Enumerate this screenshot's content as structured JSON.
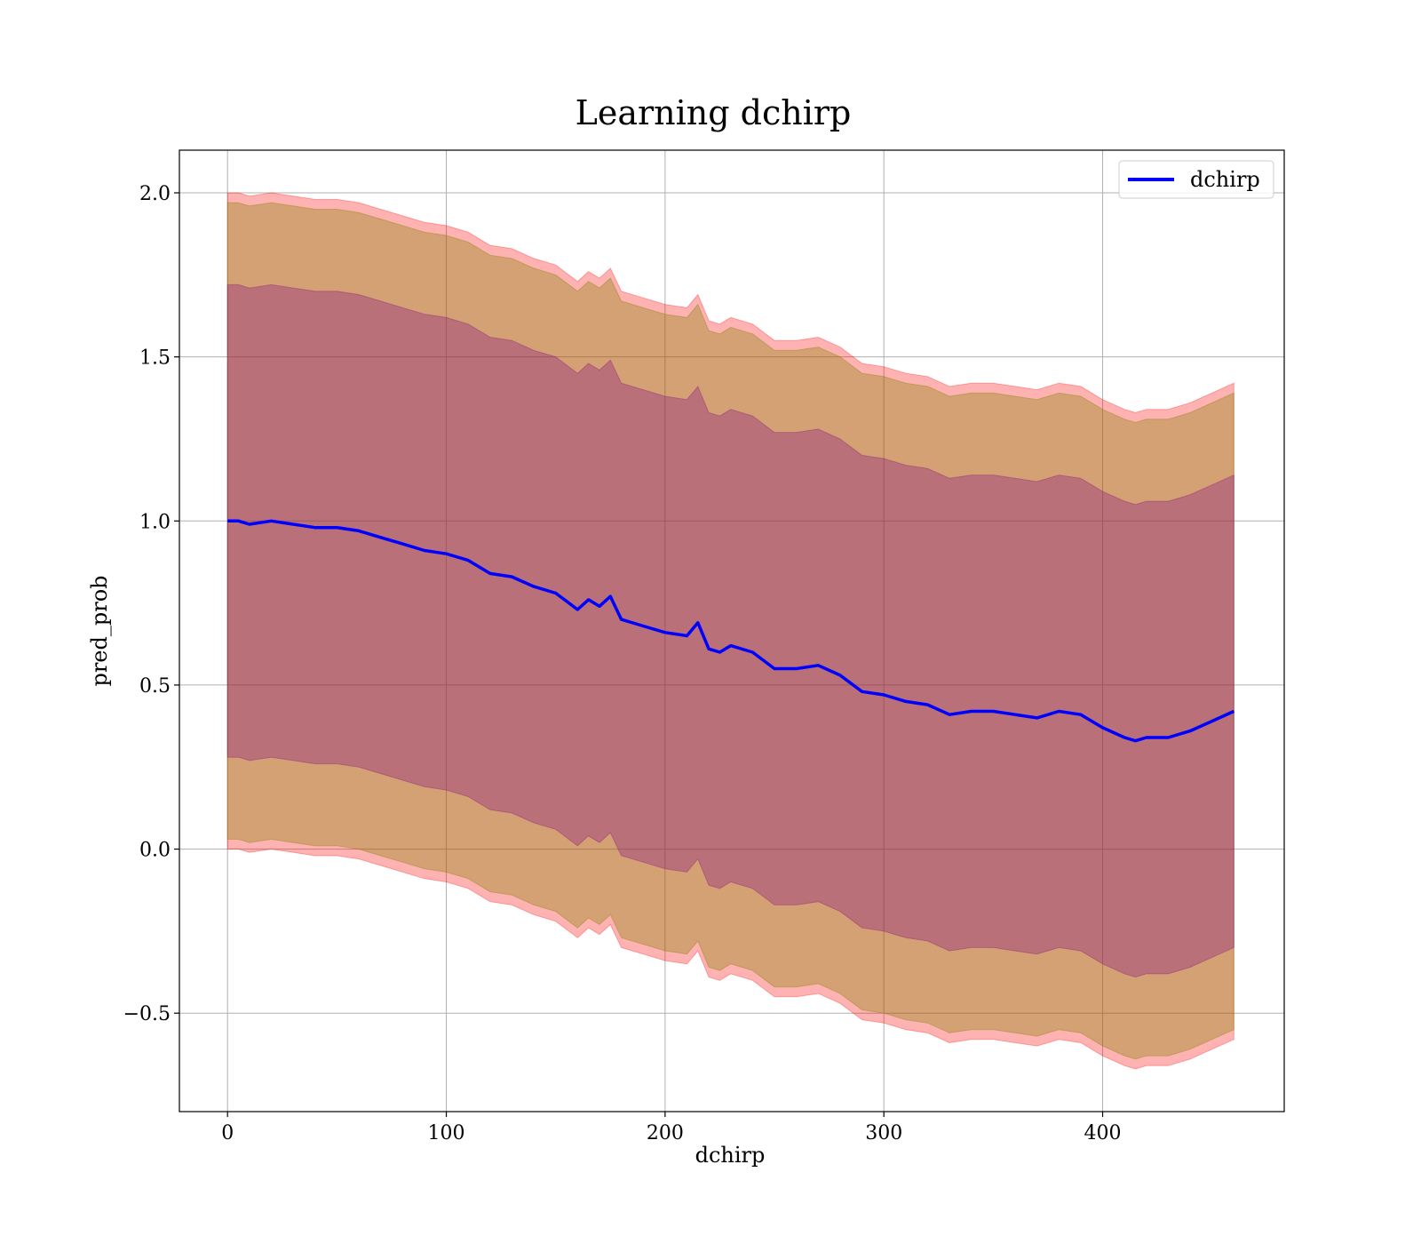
{
  "chart_data": {
    "type": "line",
    "title": "Learning dchirp",
    "xlabel": "dchirp",
    "ylabel": "pred_prob",
    "xlim": [
      -22,
      483
    ],
    "ylim": [
      -0.8,
      2.13
    ],
    "xticks": [
      0,
      100,
      200,
      300,
      400
    ],
    "yticks": [
      -0.5,
      0.0,
      0.5,
      1.0,
      1.5,
      2.0
    ],
    "xtick_labels": [
      "0",
      "100",
      "200",
      "300",
      "400"
    ],
    "ytick_labels": [
      "−0.5",
      "0.0",
      "0.5",
      "1.0",
      "1.5",
      "2.0"
    ],
    "grid": true,
    "legend_position": "top-right",
    "series": [
      {
        "name": "dchirp",
        "color": "#0000ff",
        "x": [
          0,
          5,
          10,
          20,
          30,
          40,
          50,
          60,
          70,
          80,
          90,
          100,
          110,
          120,
          130,
          140,
          150,
          160,
          165,
          170,
          175,
          180,
          190,
          200,
          210,
          215,
          220,
          225,
          230,
          240,
          250,
          260,
          270,
          280,
          290,
          300,
          310,
          320,
          330,
          340,
          350,
          360,
          370,
          380,
          390,
          400,
          410,
          415,
          420,
          430,
          440,
          450,
          460
        ],
        "y": [
          1.0,
          1.0,
          0.99,
          1.0,
          0.99,
          0.98,
          0.98,
          0.97,
          0.95,
          0.93,
          0.91,
          0.9,
          0.88,
          0.84,
          0.83,
          0.8,
          0.78,
          0.73,
          0.76,
          0.74,
          0.77,
          0.7,
          0.68,
          0.66,
          0.65,
          0.69,
          0.61,
          0.6,
          0.62,
          0.6,
          0.55,
          0.55,
          0.56,
          0.53,
          0.48,
          0.47,
          0.45,
          0.44,
          0.41,
          0.42,
          0.42,
          0.41,
          0.4,
          0.42,
          0.41,
          0.37,
          0.34,
          0.33,
          0.34,
          0.34,
          0.36,
          0.39,
          0.42
        ]
      }
    ],
    "bands": [
      {
        "fill": "#ff0000",
        "opacity": 0.3,
        "lower_offset": -1.0,
        "upper_offset": 1.0
      },
      {
        "fill": "#808000",
        "opacity": 0.35,
        "lower_offset": -0.97,
        "upper_offset": 0.97
      },
      {
        "fill": "#800080",
        "opacity": 0.3,
        "lower_offset": -0.72,
        "upper_offset": 0.72
      }
    ]
  }
}
